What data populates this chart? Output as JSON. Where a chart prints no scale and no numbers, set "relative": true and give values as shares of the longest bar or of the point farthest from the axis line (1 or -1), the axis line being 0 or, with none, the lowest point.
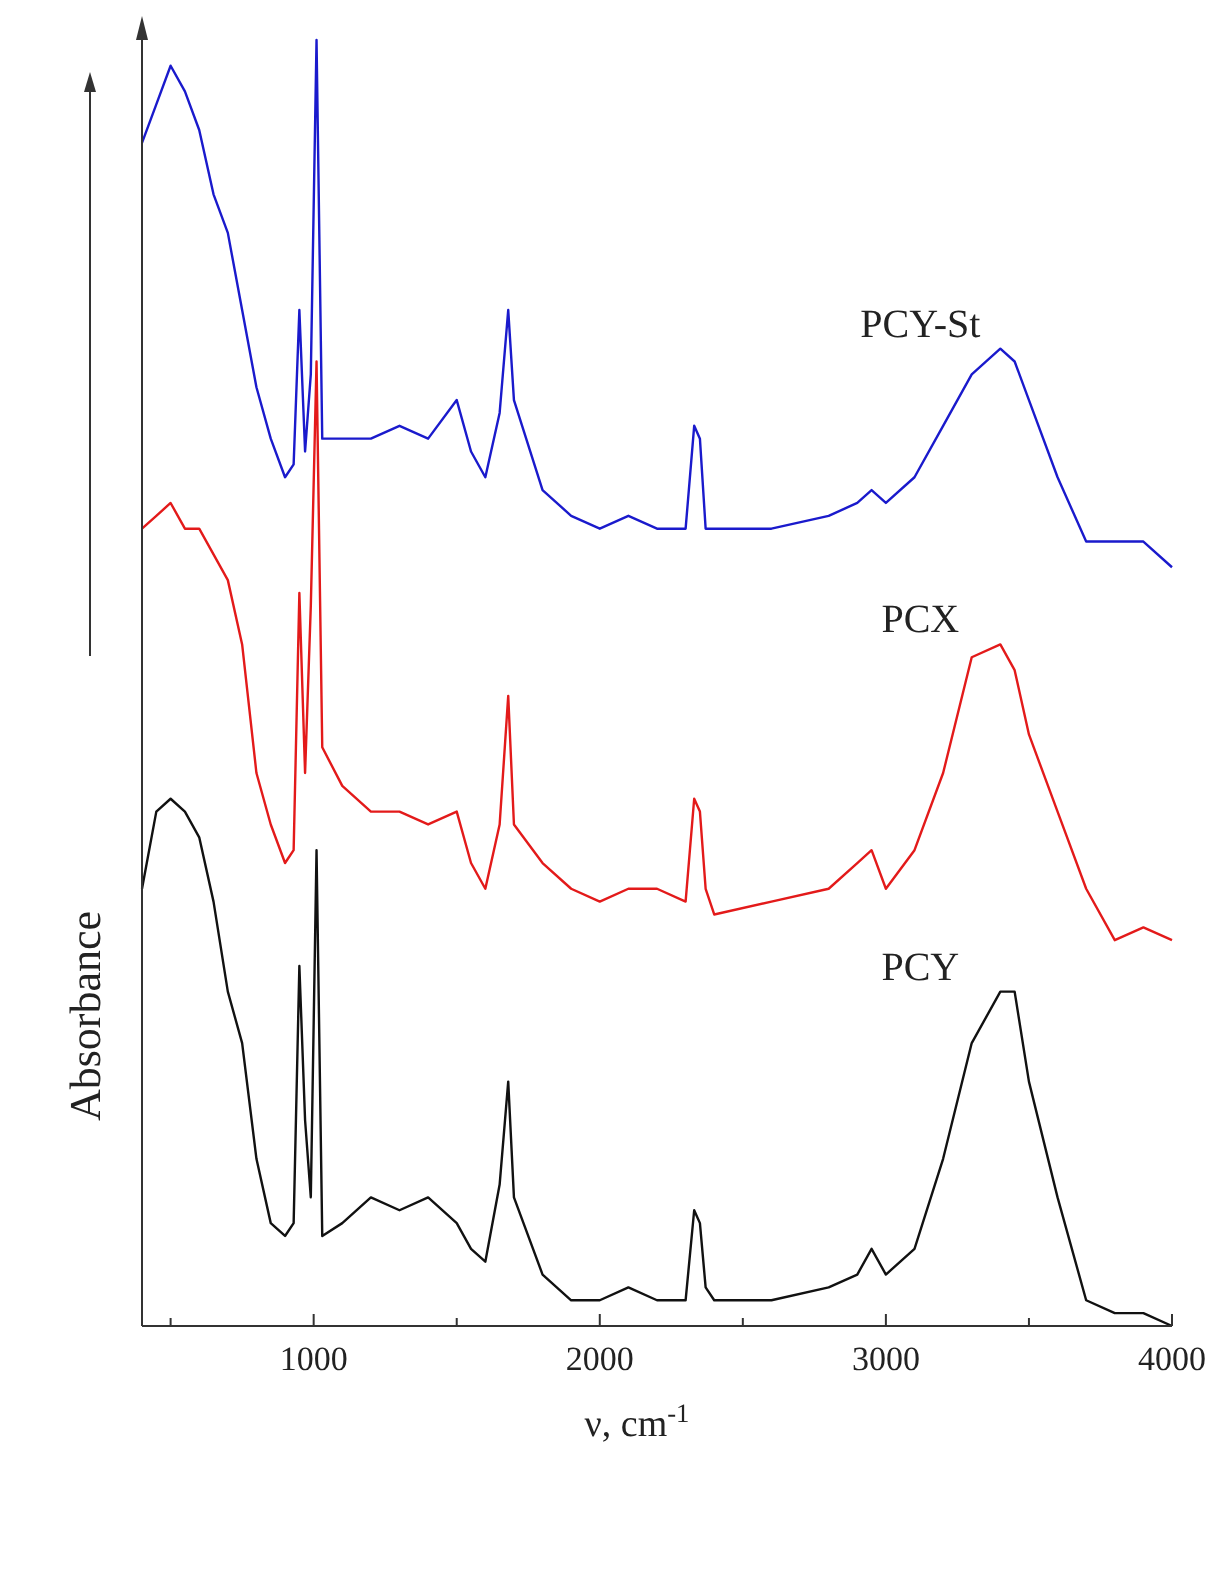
{
  "chart_data": {
    "type": "line",
    "relative": true,
    "xlabel": "ν, cm$^{-1}$",
    "ylabel": "Absorbance",
    "tick_labels": "x",
    "grid": false,
    "marker": "none",
    "line_style": "solid",
    "xlim": [
      400,
      4000
    ],
    "xticks": [
      {
        "value": 500,
        "label": null
      },
      1000,
      {
        "value": 1500,
        "label": null
      },
      2000,
      {
        "value": 2500,
        "label": null
      },
      3000,
      {
        "value": 3500,
        "label": null
      },
      4000
    ],
    "x": [
      400,
      450,
      500,
      550,
      600,
      650,
      700,
      750,
      800,
      850,
      900,
      930,
      950,
      970,
      990,
      1010,
      1030,
      1100,
      1200,
      1300,
      1400,
      1500,
      1550,
      1600,
      1650,
      1680,
      1700,
      1800,
      1900,
      2000,
      2100,
      2200,
      2300,
      2330,
      2350,
      2370,
      2400,
      2600,
      2800,
      2900,
      2950,
      3000,
      3100,
      3200,
      3300,
      3400,
      3450,
      3500,
      3600,
      3700,
      3800,
      3900,
      4000
    ],
    "series": [
      {
        "name": "PCY-St",
        "color": "#1a1acc",
        "values": [
          0.92,
          0.95,
          0.98,
          0.96,
          0.93,
          0.88,
          0.85,
          0.79,
          0.73,
          0.69,
          0.66,
          0.67,
          0.79,
          0.68,
          0.74,
          1.0,
          0.69,
          0.69,
          0.69,
          0.7,
          0.69,
          0.72,
          0.68,
          0.66,
          0.71,
          0.79,
          0.72,
          0.65,
          0.63,
          0.62,
          0.63,
          0.62,
          0.62,
          0.7,
          0.69,
          0.62,
          0.62,
          0.62,
          0.63,
          0.64,
          0.65,
          0.64,
          0.66,
          0.7,
          0.74,
          0.76,
          0.75,
          0.72,
          0.66,
          0.61,
          0.61,
          0.61,
          0.59
        ]
      },
      {
        "name": "PCX",
        "color": "#e31a1a",
        "values": [
          0.62,
          0.63,
          0.64,
          0.62,
          0.62,
          0.6,
          0.58,
          0.53,
          0.43,
          0.39,
          0.36,
          0.37,
          0.57,
          0.43,
          0.56,
          0.75,
          0.45,
          0.42,
          0.4,
          0.4,
          0.39,
          0.4,
          0.36,
          0.34,
          0.39,
          0.49,
          0.39,
          0.36,
          0.34,
          0.33,
          0.34,
          0.34,
          0.33,
          0.41,
          0.4,
          0.34,
          0.32,
          0.33,
          0.34,
          0.36,
          0.37,
          0.34,
          0.37,
          0.43,
          0.52,
          0.53,
          0.51,
          0.46,
          0.4,
          0.34,
          0.3,
          0.31,
          0.3
        ]
      },
      {
        "name": "PCY",
        "color": "#111111",
        "values": [
          0.34,
          0.4,
          0.41,
          0.4,
          0.38,
          0.33,
          0.26,
          0.22,
          0.13,
          0.08,
          0.07,
          0.08,
          0.28,
          0.16,
          0.1,
          0.37,
          0.07,
          0.08,
          0.1,
          0.09,
          0.1,
          0.08,
          0.06,
          0.05,
          0.11,
          0.19,
          0.1,
          0.04,
          0.02,
          0.02,
          0.03,
          0.02,
          0.02,
          0.09,
          0.08,
          0.03,
          0.02,
          0.02,
          0.03,
          0.04,
          0.06,
          0.04,
          0.06,
          0.13,
          0.22,
          0.26,
          0.26,
          0.19,
          0.1,
          0.02,
          0.01,
          0.01,
          0.0
        ]
      }
    ]
  }
}
